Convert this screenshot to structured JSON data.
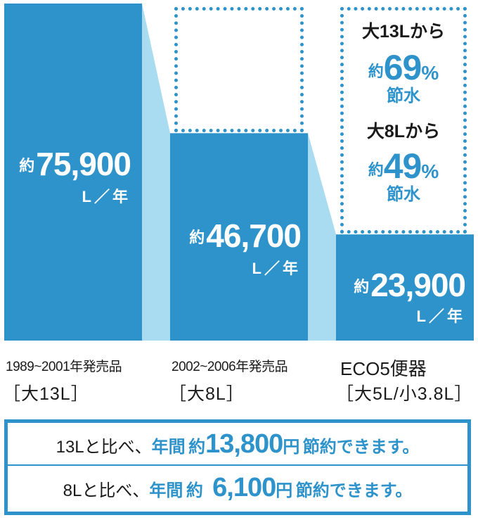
{
  "chart_data": {
    "type": "bar",
    "categories": [
      "1989~2001年発売品 [大13L]",
      "2002~2006年発売品 [大8L]",
      "ECO5便器 [大5L/小3.8L]"
    ],
    "values": [
      75900,
      46700,
      23900
    ],
    "unit": "L／年",
    "ylim": [
      0,
      75900
    ],
    "colors": {
      "bar": "#2e93cb",
      "connector": "#a9dbf1",
      "accent": "#2e93cb"
    }
  },
  "bars": [
    {
      "prefix": "約",
      "value": "75,900",
      "unit": "L／年"
    },
    {
      "prefix": "約",
      "value": "46,700",
      "unit": "L／年"
    },
    {
      "prefix": "約",
      "value": "23,900",
      "unit": "L／年"
    }
  ],
  "categories": [
    {
      "name": "1989~2001年発売品",
      "capacity": "［大13L］"
    },
    {
      "name": "2002~2006年発売品",
      "capacity": "［大8L］"
    },
    {
      "name": "ECO5便器",
      "capacity": "［大5L/小3.8L］"
    }
  ],
  "savings": [
    {
      "from": "大13Lから",
      "prefix": "約",
      "percent": "69",
      "pct_sign": "%",
      "label": "節水"
    },
    {
      "from": "大8Lから",
      "prefix": "約",
      "percent": "49",
      "pct_sign": "%",
      "label": "節水"
    }
  ],
  "summary": [
    {
      "lead": "13Lと比べ、",
      "period": "年間",
      "prefix": "約",
      "amount": "13,800",
      "currency": "円",
      "tail": "節約できます。"
    },
    {
      "lead": "8Lと比べ、",
      "period": "年間",
      "prefix": "約",
      "amount": "6,100",
      "currency": "円",
      "tail": "節約できます。"
    }
  ]
}
